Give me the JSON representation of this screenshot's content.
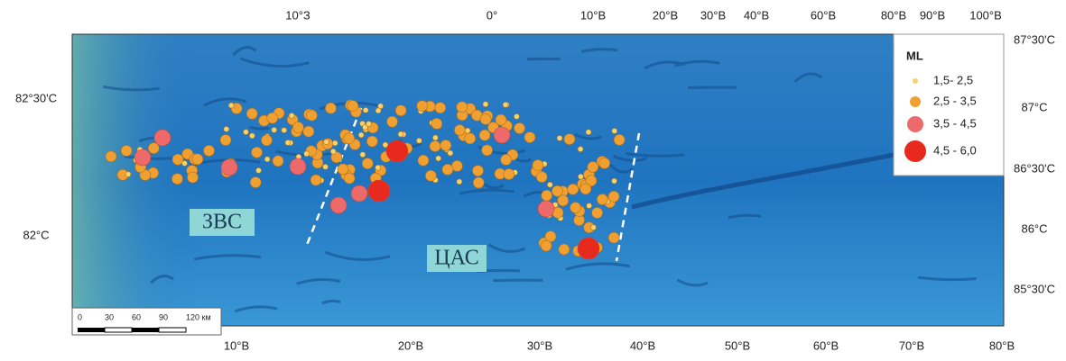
{
  "top_axis": [
    "10°З",
    "0°",
    "10°В",
    "20°В",
    "30°В",
    "40°В",
    "60°В",
    "80°В",
    "90°В",
    "100°В"
  ],
  "bottom_axis": [
    "10°В",
    "20°В",
    "30°В",
    "40°В",
    "50°В",
    "60°В",
    "70°В",
    "80°В"
  ],
  "left_axis": [
    "82°30'С",
    "82°С"
  ],
  "right_axis": [
    "87°30'С",
    "87°С",
    "86°30'С",
    "86°С",
    "85°30'С"
  ],
  "legend": {
    "title": "ML",
    "items": [
      "1,5- 2,5",
      "2,5 - 3,5",
      "3,5 - 4,5",
      "4,5 - 6,0"
    ]
  },
  "regions": [
    "ЗВС",
    "ЦАС"
  ],
  "scale_bar": [
    "0",
    "30",
    "60",
    "90",
    "120 км"
  ]
}
